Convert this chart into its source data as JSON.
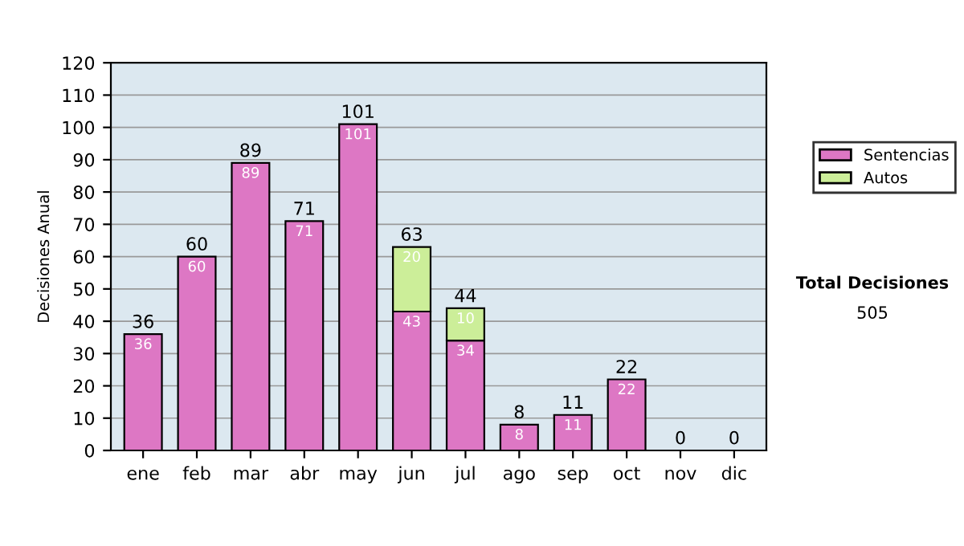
{
  "chart_data": {
    "type": "bar",
    "stacked": true,
    "ylabel": "Decisiones Anual",
    "categories": [
      "ene",
      "feb",
      "mar",
      "abr",
      "may",
      "jun",
      "jul",
      "ago",
      "sep",
      "oct",
      "nov",
      "dic"
    ],
    "series": [
      {
        "name": "Sentencias",
        "color": "#dd77c4",
        "values": [
          36,
          60,
          89,
          71,
          101,
          43,
          34,
          8,
          11,
          22,
          0,
          0
        ],
        "value_labels": [
          "36",
          "60",
          "89",
          "71",
          "101",
          "43",
          "34",
          "8",
          "11",
          "22",
          null,
          null
        ]
      },
      {
        "name": "Autos",
        "color": "#ccee99",
        "values": [
          0,
          0,
          0,
          0,
          0,
          20,
          10,
          0,
          0,
          0,
          0,
          0
        ],
        "value_labels": [
          null,
          null,
          null,
          null,
          null,
          "20",
          "10",
          null,
          null,
          null,
          null,
          null
        ]
      }
    ],
    "totals": [
      "36",
      "60",
      "89",
      "71",
      "101",
      "63",
      "44",
      "8",
      "11",
      "22",
      "0",
      "0"
    ],
    "ylim": [
      0,
      120
    ],
    "yticks": [
      0,
      10,
      20,
      30,
      40,
      50,
      60,
      70,
      80,
      90,
      100,
      110,
      120
    ],
    "grid": "y",
    "legend": "right",
    "annotations": [
      "Total Decisiones",
      "505"
    ]
  }
}
